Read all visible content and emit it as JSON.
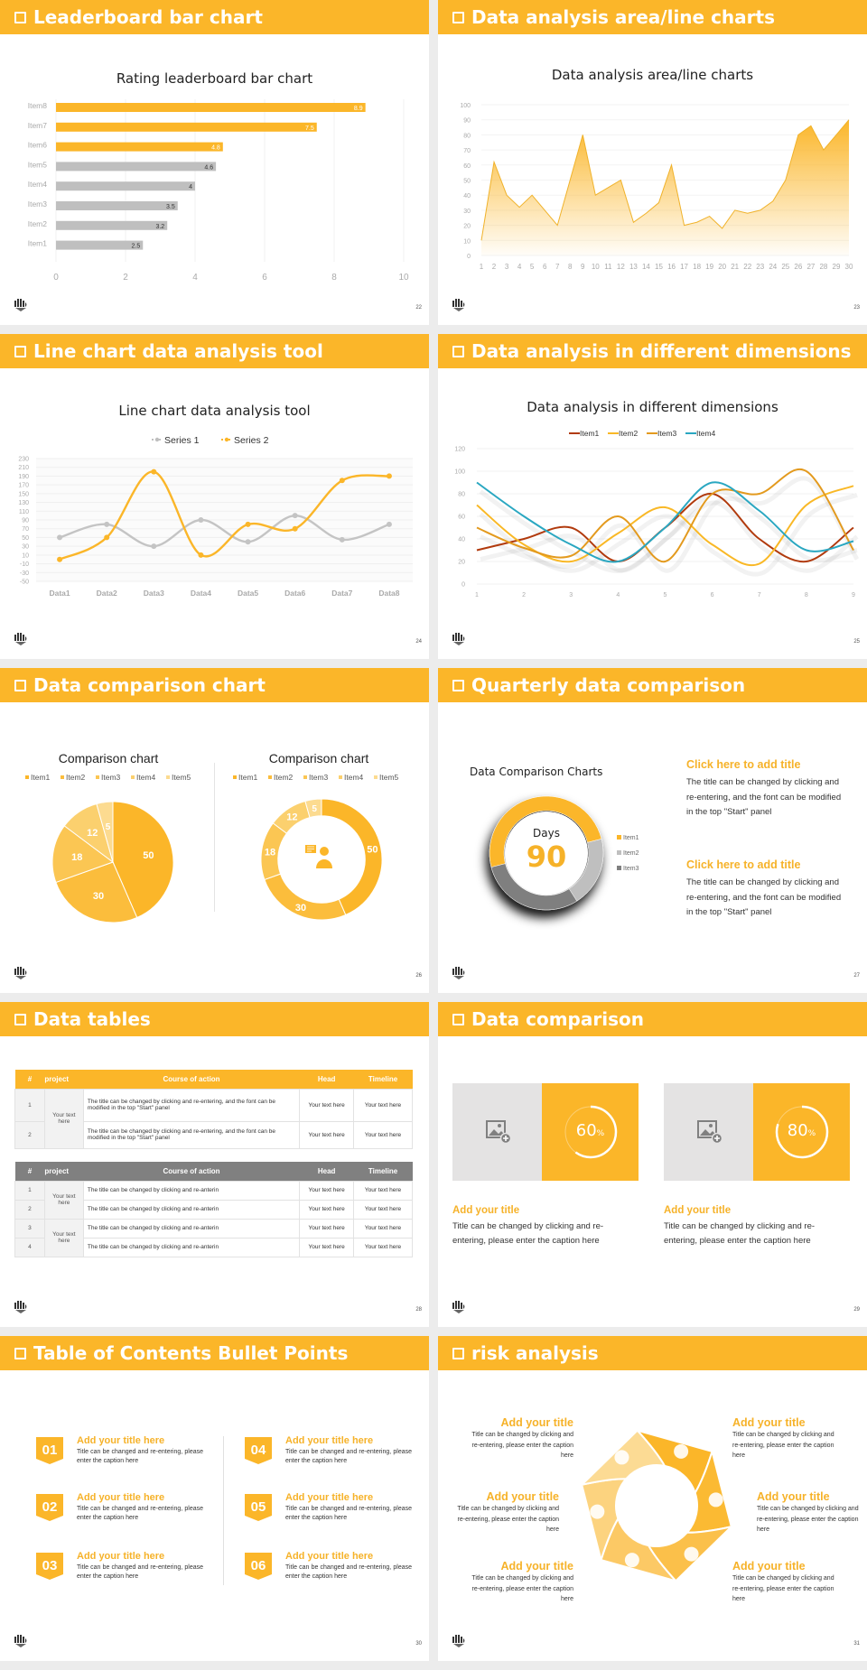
{
  "colors": {
    "accent": "#fbb629",
    "gray": "#bfbfbf",
    "dark_gray": "#7f7f7f",
    "item1_red": "#b13a0d",
    "item2_yellow": "#f9b826",
    "item3_orange": "#e39a1e",
    "item4_teal": "#2aa7c1"
  },
  "slides": [
    {
      "header": "Leaderboard bar chart",
      "page": "22"
    },
    {
      "header": "Data analysis area/line charts",
      "page": "23"
    },
    {
      "header": "Line chart data analysis tool",
      "page": "24"
    },
    {
      "header": "Data analysis in different dimensions",
      "page": "25"
    },
    {
      "header": "Data comparison chart",
      "page": "26"
    },
    {
      "header": "Quarterly data comparison",
      "page": "27"
    },
    {
      "header": "Data tables",
      "page": "28"
    },
    {
      "header": "Data comparison",
      "page": "29"
    },
    {
      "header": "Table of Contents Bullet Points",
      "page": "30"
    },
    {
      "header": "risk analysis",
      "page": "31"
    }
  ],
  "chart_data": [
    {
      "type": "bar",
      "orientation": "horizontal",
      "title": "Rating leaderboard bar chart",
      "categories": [
        "Item1",
        "Item2",
        "Item3",
        "Item4",
        "Item5",
        "Item6",
        "Item7",
        "Item8"
      ],
      "values": [
        2.5,
        3.2,
        3.5,
        4,
        4.6,
        4.8,
        7.5,
        8.9
      ],
      "highlighted": [
        "Item6",
        "Item7",
        "Item8"
      ],
      "xlim": [
        0,
        10
      ],
      "xticks": [
        0,
        2,
        4,
        6,
        8,
        10
      ],
      "grid": true
    },
    {
      "type": "area",
      "title": "Data analysis area/line charts",
      "x": [
        1,
        2,
        3,
        4,
        5,
        6,
        7,
        8,
        9,
        10,
        11,
        12,
        13,
        14,
        15,
        16,
        17,
        18,
        19,
        20,
        21,
        22,
        23,
        24,
        25,
        26,
        27,
        28,
        29,
        30
      ],
      "values": [
        10,
        62,
        40,
        32,
        40,
        30,
        20,
        50,
        80,
        40,
        45,
        50,
        22,
        28,
        35,
        60,
        20,
        22,
        26,
        18,
        30,
        28,
        30,
        36,
        50,
        80,
        86,
        70,
        80,
        90
      ],
      "ylim": [
        0,
        100
      ],
      "yticks": [
        0,
        10,
        20,
        30,
        40,
        50,
        60,
        70,
        80,
        90,
        100
      ],
      "grid": true
    },
    {
      "type": "line",
      "title": "Line chart data analysis tool",
      "categories": [
        "Data1",
        "Data2",
        "Data3",
        "Data4",
        "Data5",
        "Data6",
        "Data7",
        "Data8"
      ],
      "series": [
        {
          "name": "Series 1",
          "values": [
            50,
            80,
            30,
            90,
            40,
            100,
            45,
            80
          ]
        },
        {
          "name": "Series 2",
          "values": [
            0,
            50,
            200,
            10,
            80,
            70,
            180,
            190
          ]
        }
      ],
      "ylim": [
        -50,
        230
      ],
      "yticks": [
        -50,
        -30,
        -10,
        10,
        30,
        50,
        70,
        90,
        110,
        130,
        150,
        170,
        190,
        210,
        230
      ],
      "legend": "top",
      "smooth": true
    },
    {
      "type": "line",
      "title": "Data analysis in different dimensions",
      "x": [
        1,
        2,
        3,
        4,
        5,
        6,
        7,
        8,
        9
      ],
      "series": [
        {
          "name": "Item1",
          "values": [
            30,
            40,
            50,
            20,
            50,
            80,
            40,
            20,
            50
          ]
        },
        {
          "name": "Item2",
          "values": [
            70,
            35,
            20,
            45,
            68,
            35,
            18,
            70,
            87
          ]
        },
        {
          "name": "Item3",
          "values": [
            50,
            32,
            25,
            60,
            20,
            80,
            80,
            100,
            30
          ]
        },
        {
          "name": "Item4",
          "values": [
            90,
            60,
            35,
            20,
            50,
            90,
            65,
            30,
            38
          ]
        }
      ],
      "ylim": [
        0,
        120
      ],
      "yticks": [
        0,
        20,
        40,
        60,
        80,
        100,
        120
      ],
      "legend": "top",
      "smooth": true
    },
    {
      "type": "pie",
      "title": "Comparison chart",
      "categories": [
        "Item1",
        "Item2",
        "Item3",
        "Item4",
        "Item5"
      ],
      "values": [
        50,
        30,
        18,
        12,
        5
      ],
      "legend": "top"
    },
    {
      "type": "pie",
      "variant": "donut",
      "title": "Comparison chart",
      "categories": [
        "Item1",
        "Item2",
        "Item3",
        "Item4",
        "Item5"
      ],
      "values": [
        50,
        30,
        18,
        12,
        5
      ],
      "legend": "top"
    },
    {
      "type": "pie",
      "variant": "donut",
      "title": "Data Comparison Charts",
      "categories": [
        "Item1",
        "Item2",
        "Item3"
      ],
      "values": [
        50,
        20,
        30
      ],
      "center_label": "Days",
      "center_value": "90",
      "legend": "right"
    }
  ],
  "s22": {
    "title": "Rating leaderboard bar chart"
  },
  "s23": {
    "title": "Data analysis area/line charts"
  },
  "s24": {
    "title": "Line chart data analysis tool",
    "legend": [
      "Series 1",
      "Series 2"
    ]
  },
  "s25": {
    "title": "Data analysis in different dimensions",
    "legend": [
      "Item1",
      "Item2",
      "Item3",
      "Item4"
    ]
  },
  "s26": {
    "left_title": "Comparison chart",
    "right_title": "Comparison chart",
    "legend": [
      "Item1",
      "Item2",
      "Item3",
      "Item4",
      "Item5"
    ]
  },
  "s27": {
    "chart_title": "Data Comparison Charts",
    "center_label": "Days",
    "center_value": "90",
    "legend": [
      "Item1",
      "Item2",
      "Item3"
    ],
    "blocks": [
      {
        "title": "Click here to add title",
        "body": "The title can be changed by clicking and re-entering, and the font can be modified in the top \"Start\" panel"
      },
      {
        "title": "Click here to add title",
        "body": "The title can be changed by clicking and re-entering, and the font can be modified in the top \"Start\" panel"
      }
    ]
  },
  "s28": {
    "table1": {
      "headers": [
        "#",
        "project",
        "Course of action",
        "Head",
        "Timeline"
      ],
      "project": "Your text here",
      "rows": [
        {
          "num": "1",
          "action": "The title can be changed by clicking and re-entering, and the font can be modified in the top \"Start\" panel",
          "head": "Your text here",
          "timeline": "Your text here"
        },
        {
          "num": "2",
          "action": "The title can be changed by clicking and re-entering, and the font can be modified in the top \"Start\" panel",
          "head": "Your text here",
          "timeline": "Your text here"
        }
      ]
    },
    "table2": {
      "headers": [
        "#",
        "project",
        "Course of action",
        "Head",
        "Timeline"
      ],
      "projects": [
        "Your text here",
        "Your text here"
      ],
      "rows": [
        {
          "num": "1",
          "action": "The title can be changed by clicking and re-anterin",
          "head": "Your text here",
          "timeline": "Your text here"
        },
        {
          "num": "2",
          "action": "The title can be changed by clicking and re-anterin",
          "head": "Your text here",
          "timeline": "Your text here"
        },
        {
          "num": "3",
          "action": "The title can be changed by clicking and re-anterin",
          "head": "Your text here",
          "timeline": "Your text here"
        },
        {
          "num": "4",
          "action": "The title can be changed by clicking and re-anterin",
          "head": "Your text here",
          "timeline": "Your text here"
        }
      ]
    }
  },
  "s29": {
    "cards": [
      {
        "percent": "60",
        "unit": "%",
        "title": "Add your title",
        "body": "Title can be changed by clicking and re-entering, please enter the caption here"
      },
      {
        "percent": "80",
        "unit": "%",
        "title": "Add your title",
        "body": "Title can be changed by clicking and re-entering, please enter the caption here"
      }
    ]
  },
  "s30": {
    "items": [
      {
        "num": "01",
        "title": "Add your title here",
        "body": "Title can be changed and re-entering, please enter the caption here"
      },
      {
        "num": "02",
        "title": "Add your title here",
        "body": "Title can be changed and re-entering, please enter the caption here"
      },
      {
        "num": "03",
        "title": "Add your title here",
        "body": "Title can be changed and re-entering, please enter the caption here"
      },
      {
        "num": "04",
        "title": "Add your title here",
        "body": "Title can be changed and re-entering, please enter the caption here"
      },
      {
        "num": "05",
        "title": "Add your title here",
        "body": "Title can be changed and re-entering, please enter the caption here"
      },
      {
        "num": "06",
        "title": "Add your title here",
        "body": "Title can be changed and re-entering, please enter the caption here"
      }
    ]
  },
  "s31": {
    "items": [
      {
        "title": "Add your title",
        "body": "Title can be changed by clicking and re-entering, please enter the caption here"
      },
      {
        "title": "Add your title",
        "body": "Title can be changed by clicking and re-entering, please enter the caption here"
      },
      {
        "title": "Add your title",
        "body": "Title can be changed by clicking and re-entering, please enter the caption here"
      },
      {
        "title": "Add your title",
        "body": "Title can be changed by clicking and re-entering, please enter the caption here"
      },
      {
        "title": "Add your title",
        "body": "Title can be changed by clicking and re-entering, please enter the caption here"
      },
      {
        "title": "Add your title",
        "body": "Title can be changed by clicking and re-entering, please enter the caption here"
      }
    ],
    "icons": [
      "money-bag-icon",
      "coins-icon",
      "users-icon",
      "pie-chart-icon",
      "building-icon",
      "hand-money-icon"
    ]
  }
}
